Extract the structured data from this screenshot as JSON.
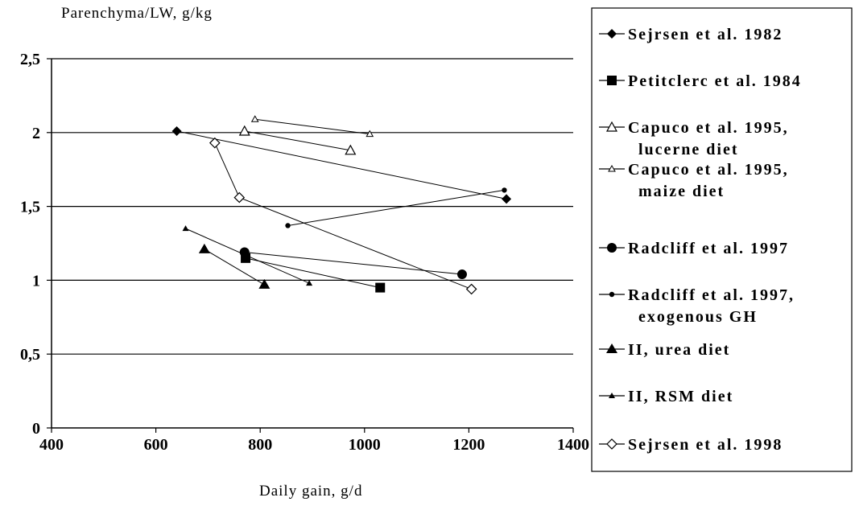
{
  "chart_data": {
    "type": "scatter",
    "xlabel": "Daily gain, g/d",
    "ylabel": "Parenchyma/LW, g/kg",
    "xlim": [
      400,
      1400
    ],
    "ylim": [
      0,
      2.5
    ],
    "x_ticks": [
      "400",
      "600",
      "800",
      "1000",
      "1200",
      "1400"
    ],
    "y_ticks": [
      "0",
      "0,5",
      "1",
      "1,5",
      "2",
      "2,5"
    ],
    "grid": "horizontal",
    "legend_position": "right",
    "series": [
      {
        "name": [
          "Sejrsen et al. 1982"
        ],
        "marker": "diamond-filled",
        "points": [
          [
            640,
            2.01
          ],
          [
            1272,
            1.55
          ]
        ]
      },
      {
        "name": [
          "Petitclerc et al. 1984"
        ],
        "marker": "square-filled",
        "points": [
          [
            772,
            1.15
          ],
          [
            1030,
            0.95
          ]
        ]
      },
      {
        "name": [
          "Capuco et al. 1995,",
          "lucerne diet"
        ],
        "marker": "triangle-open",
        "points": [
          [
            770,
            2.01
          ],
          [
            973,
            1.88
          ]
        ]
      },
      {
        "name": [
          "Capuco et al. 1995,",
          "maize diet"
        ],
        "marker": "triangle-open-small",
        "points": [
          [
            790,
            2.09
          ],
          [
            1010,
            1.99
          ]
        ]
      },
      {
        "name": [
          "Radcliff et al. 1997"
        ],
        "marker": "circle-filled",
        "points": [
          [
            770,
            1.19
          ],
          [
            1187,
            1.04
          ]
        ]
      },
      {
        "name": [
          "Radcliff et al. 1997,",
          "exogenous GH"
        ],
        "marker": "circle-filled-small",
        "points": [
          [
            853,
            1.37
          ],
          [
            1268,
            1.61
          ]
        ]
      },
      {
        "name": [
          "II, urea diet"
        ],
        "marker": "triangle-filled",
        "points": [
          [
            693,
            1.21
          ],
          [
            808,
            0.97
          ]
        ]
      },
      {
        "name": [
          "II, RSM diet"
        ],
        "marker": "triangle-filled-small",
        "points": [
          [
            657,
            1.35
          ],
          [
            894,
            0.98
          ]
        ]
      },
      {
        "name": [
          "Sejrsen et al. 1998"
        ],
        "marker": "diamond-open",
        "points": [
          [
            713,
            1.93
          ],
          [
            760,
            1.56
          ],
          [
            1205,
            0.94
          ]
        ]
      }
    ]
  }
}
